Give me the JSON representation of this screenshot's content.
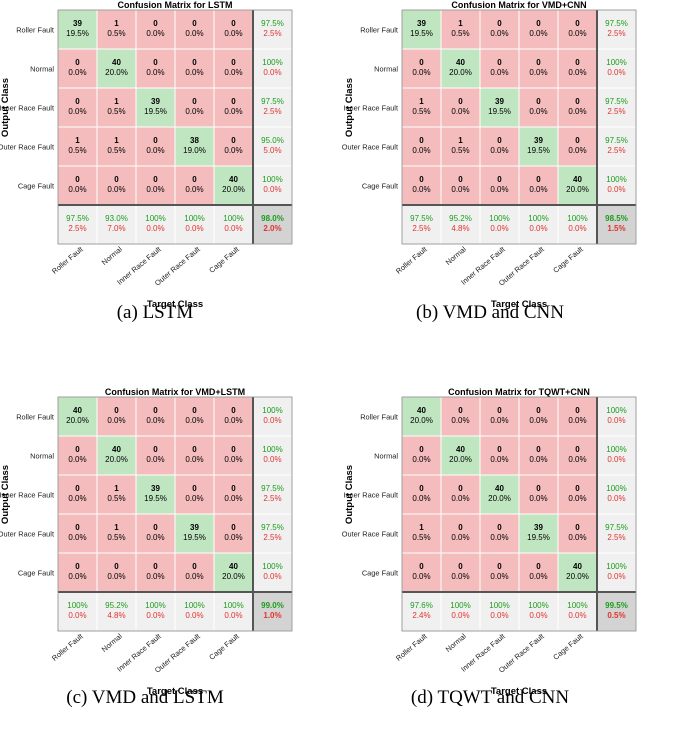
{
  "chart_data": [
    {
      "type": "heatmap",
      "title": "Confusion Matrix for LSTM",
      "caption": "(a)  LSTM",
      "xlabel": "Target Class",
      "ylabel": "Output Class",
      "classes": [
        "Roller Fault",
        "Normal",
        "Inner Race Fault",
        "Outer Race Fault",
        "Cage Fault"
      ],
      "matrix": [
        [
          39,
          1,
          0,
          0,
          0
        ],
        [
          0,
          40,
          0,
          0,
          0
        ],
        [
          0,
          1,
          39,
          0,
          0
        ],
        [
          1,
          1,
          0,
          38,
          0
        ],
        [
          0,
          0,
          0,
          0,
          40
        ]
      ],
      "cell_pct": [
        [
          "19.5%",
          "0.5%",
          "0.0%",
          "0.0%",
          "0.0%"
        ],
        [
          "0.0%",
          "20.0%",
          "0.0%",
          "0.0%",
          "0.0%"
        ],
        [
          "0.0%",
          "0.5%",
          "19.5%",
          "0.0%",
          "0.0%"
        ],
        [
          "0.5%",
          "0.5%",
          "0.0%",
          "19.0%",
          "0.0%"
        ],
        [
          "0.0%",
          "0.0%",
          "0.0%",
          "0.0%",
          "20.0%"
        ]
      ],
      "row_summary": [
        [
          "97.5%",
          "2.5%"
        ],
        [
          "100%",
          "0.0%"
        ],
        [
          "97.5%",
          "2.5%"
        ],
        [
          "95.0%",
          "5.0%"
        ],
        [
          "100%",
          "0.0%"
        ]
      ],
      "col_summary": [
        [
          "97.5%",
          "2.5%"
        ],
        [
          "93.0%",
          "7.0%"
        ],
        [
          "100%",
          "0.0%"
        ],
        [
          "100%",
          "0.0%"
        ],
        [
          "100%",
          "0.0%"
        ]
      ],
      "overall": [
        "98.0%",
        "2.0%"
      ]
    },
    {
      "type": "heatmap",
      "title": "Confusion Matrix for VMD+CNN",
      "caption": "(b)   VMD and CNN",
      "xlabel": "Target Class",
      "ylabel": "Output Class",
      "classes": [
        "Roller Fault",
        "Normal",
        "Inner Race Fault",
        "Outer Race Fault",
        "Cage Fault"
      ],
      "matrix": [
        [
          39,
          1,
          0,
          0,
          0
        ],
        [
          0,
          40,
          0,
          0,
          0
        ],
        [
          1,
          0,
          39,
          0,
          0
        ],
        [
          0,
          1,
          0,
          39,
          0
        ],
        [
          0,
          0,
          0,
          0,
          40
        ]
      ],
      "cell_pct": [
        [
          "19.5%",
          "0.5%",
          "0.0%",
          "0.0%",
          "0.0%"
        ],
        [
          "0.0%",
          "20.0%",
          "0.0%",
          "0.0%",
          "0.0%"
        ],
        [
          "0.5%",
          "0.0%",
          "19.5%",
          "0.0%",
          "0.0%"
        ],
        [
          "0.0%",
          "0.5%",
          "0.0%",
          "19.5%",
          "0.0%"
        ],
        [
          "0.0%",
          "0.0%",
          "0.0%",
          "0.0%",
          "20.0%"
        ]
      ],
      "row_summary": [
        [
          "97.5%",
          "2.5%"
        ],
        [
          "100%",
          "0.0%"
        ],
        [
          "97.5%",
          "2.5%"
        ],
        [
          "97.5%",
          "2.5%"
        ],
        [
          "100%",
          "0.0%"
        ]
      ],
      "col_summary": [
        [
          "97.5%",
          "2.5%"
        ],
        [
          "95.2%",
          "4.8%"
        ],
        [
          "100%",
          "0.0%"
        ],
        [
          "100%",
          "0.0%"
        ],
        [
          "100%",
          "0.0%"
        ]
      ],
      "overall": [
        "98.5%",
        "1.5%"
      ]
    },
    {
      "type": "heatmap",
      "title": "Confusion Matrix for VMD+LSTM",
      "caption": "(c)   VMD and LSTM",
      "xlabel": "Target Class",
      "ylabel": "Output Class",
      "classes": [
        "Roller Fault",
        "Normal",
        "Inner Race Fault",
        "Outer Race Fault",
        "Cage Fault"
      ],
      "matrix": [
        [
          40,
          0,
          0,
          0,
          0
        ],
        [
          0,
          40,
          0,
          0,
          0
        ],
        [
          0,
          1,
          39,
          0,
          0
        ],
        [
          0,
          1,
          0,
          39,
          0
        ],
        [
          0,
          0,
          0,
          0,
          40
        ]
      ],
      "cell_pct": [
        [
          "20.0%",
          "0.0%",
          "0.0%",
          "0.0%",
          "0.0%"
        ],
        [
          "0.0%",
          "20.0%",
          "0.0%",
          "0.0%",
          "0.0%"
        ],
        [
          "0.0%",
          "0.5%",
          "19.5%",
          "0.0%",
          "0.0%"
        ],
        [
          "0.0%",
          "0.5%",
          "0.0%",
          "19.5%",
          "0.0%"
        ],
        [
          "0.0%",
          "0.0%",
          "0.0%",
          "0.0%",
          "20.0%"
        ]
      ],
      "row_summary": [
        [
          "100%",
          "0.0%"
        ],
        [
          "100%",
          "0.0%"
        ],
        [
          "97.5%",
          "2.5%"
        ],
        [
          "97.5%",
          "2.5%"
        ],
        [
          "100%",
          "0.0%"
        ]
      ],
      "col_summary": [
        [
          "100%",
          "0.0%"
        ],
        [
          "95.2%",
          "4.8%"
        ],
        [
          "100%",
          "0.0%"
        ],
        [
          "100%",
          "0.0%"
        ],
        [
          "100%",
          "0.0%"
        ]
      ],
      "overall": [
        "99.0%",
        "1.0%"
      ]
    },
    {
      "type": "heatmap",
      "title": "Confusion Matrix for TQWT+CNN",
      "caption": "(d)   TQWT and CNN",
      "xlabel": "Target Class",
      "ylabel": "Output Class",
      "classes": [
        "Roller Fault",
        "Normal",
        "Inner Race Fault",
        "Outer Race Fault",
        "Cage Fault"
      ],
      "matrix": [
        [
          40,
          0,
          0,
          0,
          0
        ],
        [
          0,
          40,
          0,
          0,
          0
        ],
        [
          0,
          0,
          40,
          0,
          0
        ],
        [
          1,
          0,
          0,
          39,
          0
        ],
        [
          0,
          0,
          0,
          0,
          40
        ]
      ],
      "cell_pct": [
        [
          "20.0%",
          "0.0%",
          "0.0%",
          "0.0%",
          "0.0%"
        ],
        [
          "0.0%",
          "20.0%",
          "0.0%",
          "0.0%",
          "0.0%"
        ],
        [
          "0.0%",
          "0.0%",
          "20.0%",
          "0.0%",
          "0.0%"
        ],
        [
          "0.5%",
          "0.0%",
          "0.0%",
          "19.5%",
          "0.0%"
        ],
        [
          "0.0%",
          "0.0%",
          "0.0%",
          "0.0%",
          "20.0%"
        ]
      ],
      "row_summary": [
        [
          "100%",
          "0.0%"
        ],
        [
          "100%",
          "0.0%"
        ],
        [
          "100%",
          "0.0%"
        ],
        [
          "97.5%",
          "2.5%"
        ],
        [
          "100%",
          "0.0%"
        ]
      ],
      "col_summary": [
        [
          "97.6%",
          "2.4%"
        ],
        [
          "100%",
          "0.0%"
        ],
        [
          "100%",
          "0.0%"
        ],
        [
          "100%",
          "0.0%"
        ],
        [
          "100%",
          "0.0%"
        ]
      ],
      "overall": [
        "99.5%",
        "0.5%"
      ]
    }
  ],
  "colors": {
    "diagonal": "#bfe6c1",
    "off_diagonal": "#f4bcbd",
    "summary": "#f0f0f0",
    "overall": "#d3d3d3",
    "good_text": "#1a9e1a",
    "bad_text": "#e0342f"
  }
}
